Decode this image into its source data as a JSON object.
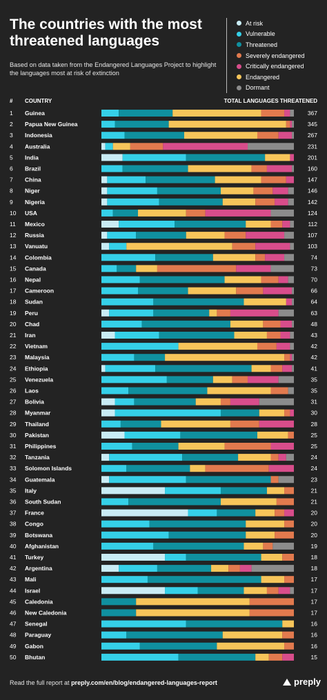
{
  "title": "The countries with the most threatened languages",
  "subtitle": "Based on data taken from the Endangered Languages Project to highlight the languages most at risk of extinction",
  "footer": {
    "prefix": "Read the full report at ",
    "link": "preply.com/en/blog/endangered-languages-report"
  },
  "brand": "preply",
  "chart_data": {
    "type": "bar",
    "orientation": "horizontal",
    "stacked": true,
    "normalized": true,
    "header_rank": "#",
    "header_country": "COUNTRY",
    "header_total": "TOTAL LANGUAGES THREATENED",
    "legend": [
      {
        "name": "At risk",
        "color": "#c9ecf5"
      },
      {
        "name": "Vulnerable",
        "color": "#35d0e8"
      },
      {
        "name": "Threatened",
        "color": "#10909f"
      },
      {
        "name": "Severely endangered",
        "color": "#e27a4e"
      },
      {
        "name": "Critically endangered",
        "color": "#d84d8b"
      },
      {
        "name": "Endangered",
        "color": "#f7c55a"
      },
      {
        "name": "Dormant",
        "color": "#8c8c8c"
      }
    ],
    "segment_order": [
      "At risk",
      "Vulnerable",
      "Threatened",
      "Endangered",
      "Severely endangered",
      "Critically endangered",
      "Dormant"
    ],
    "rows": [
      {
        "rank": 1,
        "country": "Guinea",
        "total": 367,
        "shares": [
          0,
          0.09,
          0.28,
          0.46,
          0.12,
          0.03,
          0.02
        ]
      },
      {
        "rank": 2,
        "country": "Papua New Guinea",
        "total": 345,
        "shares": [
          0,
          0.07,
          0.28,
          0.61,
          0.02,
          0.01,
          0.01
        ]
      },
      {
        "rank": 3,
        "country": "Indonesia",
        "total": 267,
        "shares": [
          0,
          0.12,
          0.31,
          0.38,
          0.11,
          0.07,
          0.01
        ]
      },
      {
        "rank": 4,
        "country": "Australia",
        "total": 231,
        "shares": [
          0.02,
          0.04,
          0,
          0.09,
          0.17,
          0.44,
          0.24
        ]
      },
      {
        "rank": 5,
        "country": "India",
        "total": 201,
        "shares": [
          0.11,
          0.33,
          0.41,
          0.13,
          0,
          0.02,
          0
        ]
      },
      {
        "rank": 6,
        "country": "Brazil",
        "total": 160,
        "shares": [
          0,
          0.11,
          0.34,
          0.33,
          0.08,
          0.13,
          0.01
        ]
      },
      {
        "rank": 7,
        "country": "China",
        "total": 147,
        "shares": [
          0.03,
          0.2,
          0.36,
          0.24,
          0.13,
          0.04,
          0
        ]
      },
      {
        "rank": 8,
        "country": "Niger",
        "total": 146,
        "shares": [
          0.03,
          0.26,
          0.33,
          0.17,
          0.1,
          0.08,
          0.03
        ]
      },
      {
        "rank": 9,
        "country": "Nigeria",
        "total": 142,
        "shares": [
          0.03,
          0.27,
          0.33,
          0.17,
          0.1,
          0.07,
          0.03
        ]
      },
      {
        "rank": 10,
        "country": "USA",
        "total": 124,
        "shares": [
          0,
          0.06,
          0.13,
          0.25,
          0.1,
          0.34,
          0.12
        ]
      },
      {
        "rank": 11,
        "country": "Mexico",
        "total": 112,
        "shares": [
          0.09,
          0.29,
          0.37,
          0.13,
          0.06,
          0.04,
          0.02
        ]
      },
      {
        "rank": 12,
        "country": "Russia",
        "total": 107,
        "shares": [
          0.03,
          0.15,
          0.26,
          0.2,
          0.11,
          0.2,
          0.05
        ]
      },
      {
        "rank": 13,
        "country": "Vanuatu",
        "total": 103,
        "shares": [
          0.04,
          0.09,
          0,
          0.55,
          0.12,
          0.18,
          0.02
        ]
      },
      {
        "rank": 14,
        "country": "Colombia",
        "total": 74,
        "shares": [
          0,
          0.28,
          0.3,
          0.22,
          0.05,
          0.1,
          0.05
        ]
      },
      {
        "rank": 15,
        "country": "Canada",
        "total": 73,
        "shares": [
          0,
          0.08,
          0.1,
          0.11,
          0.41,
          0.18,
          0.12
        ]
      },
      {
        "rank": 16,
        "country": "Nepal",
        "total": 70,
        "shares": [
          0,
          0.2,
          0.44,
          0.19,
          0.09,
          0.05,
          0.03
        ]
      },
      {
        "rank": 17,
        "country": "Cameroon",
        "total": 66,
        "shares": [
          0,
          0.19,
          0.26,
          0.25,
          0.14,
          0.15,
          0.01
        ]
      },
      {
        "rank": 18,
        "country": "Sudan",
        "total": 64,
        "shares": [
          0,
          0.27,
          0.47,
          0.22,
          0,
          0.03,
          0.01
        ]
      },
      {
        "rank": 19,
        "country": "Peru",
        "total": 63,
        "shares": [
          0.04,
          0.23,
          0.29,
          0.04,
          0.07,
          0.25,
          0.08
        ]
      },
      {
        "rank": 20,
        "country": "Chad",
        "total": 48,
        "shares": [
          0,
          0.21,
          0.46,
          0.17,
          0.09,
          0.06,
          0.01
        ]
      },
      {
        "rank": 21,
        "country": "Iran",
        "total": 43,
        "shares": [
          0.07,
          0.23,
          0.39,
          0.17,
          0.07,
          0.05,
          0.02
        ]
      },
      {
        "rank": 22,
        "country": "Vietnam",
        "total": 42,
        "shares": [
          0,
          0.4,
          0,
          0.41,
          0.1,
          0.07,
          0.02
        ]
      },
      {
        "rank": 23,
        "country": "Malaysia",
        "total": 42,
        "shares": [
          0,
          0.17,
          0.16,
          0.62,
          0.03,
          0.01,
          0.01
        ]
      },
      {
        "rank": 24,
        "country": "Ethiopia",
        "total": 41,
        "shares": [
          0.02,
          0.26,
          0.5,
          0.1,
          0.06,
          0.05,
          0.01
        ]
      },
      {
        "rank": 25,
        "country": "Venezuela",
        "total": 35,
        "shares": [
          0,
          0.34,
          0.24,
          0.1,
          0.08,
          0.16,
          0.08
        ]
      },
      {
        "rank": 26,
        "country": "Laos",
        "total": 35,
        "shares": [
          0,
          0.14,
          0.41,
          0.33,
          0.09,
          0,
          0.03
        ]
      },
      {
        "rank": 27,
        "country": "Bolivia",
        "total": 31,
        "shares": [
          0.07,
          0.1,
          0.32,
          0.13,
          0.05,
          0.15,
          0.18
        ]
      },
      {
        "rank": 28,
        "country": "Myanmar",
        "total": 30,
        "shares": [
          0.07,
          0.55,
          0.2,
          0.13,
          0.03,
          0.02,
          0
        ]
      },
      {
        "rank": 29,
        "country": "Thailand",
        "total": 28,
        "shares": [
          0,
          0.1,
          0.21,
          0.36,
          0.15,
          0.18,
          0
        ]
      },
      {
        "rank": 30,
        "country": "Pakistan",
        "total": 25,
        "shares": [
          0.12,
          0.29,
          0.4,
          0.16,
          0.03,
          0,
          0
        ]
      },
      {
        "rank": 31,
        "country": "Philippines",
        "total": 25,
        "shares": [
          0,
          0.16,
          0.24,
          0.24,
          0.24,
          0.12,
          0
        ]
      },
      {
        "rank": 32,
        "country": "Tanzania",
        "total": 24,
        "shares": [
          0.04,
          0.38,
          0.29,
          0.17,
          0.04,
          0.04,
          0.04
        ]
      },
      {
        "rank": 33,
        "country": "Solomon Islands",
        "total": 24,
        "shares": [
          0,
          0.13,
          0.33,
          0.08,
          0.33,
          0.13,
          0
        ]
      },
      {
        "rank": 34,
        "country": "Guatemala",
        "total": 23,
        "shares": [
          0.04,
          0.4,
          0.44,
          0,
          0.04,
          0,
          0.08
        ]
      },
      {
        "rank": 35,
        "country": "Italy",
        "total": 21,
        "shares": [
          0.33,
          0.29,
          0.24,
          0.09,
          0.05,
          0,
          0
        ]
      },
      {
        "rank": 36,
        "country": "South Sudan",
        "total": 21,
        "shares": [
          0,
          0.14,
          0.48,
          0.29,
          0.09,
          0,
          0
        ]
      },
      {
        "rank": 37,
        "country": "France",
        "total": 20,
        "shares": [
          0.45,
          0.15,
          0.2,
          0.1,
          0.05,
          0.05,
          0
        ]
      },
      {
        "rank": 38,
        "country": "Congo",
        "total": 20,
        "shares": [
          0,
          0.25,
          0.5,
          0.2,
          0.05,
          0,
          0
        ]
      },
      {
        "rank": 39,
        "country": "Botswana",
        "total": 20,
        "shares": [
          0,
          0.35,
          0.4,
          0.15,
          0.1,
          0,
          0
        ]
      },
      {
        "rank": 40,
        "country": "Afghanistan",
        "total": 19,
        "shares": [
          0,
          0.27,
          0.47,
          0.1,
          0.05,
          0,
          0.11
        ]
      },
      {
        "rank": 41,
        "country": "Turkey",
        "total": 18,
        "shares": [
          0.33,
          0.11,
          0.39,
          0.11,
          0.06,
          0,
          0
        ]
      },
      {
        "rank": 42,
        "country": "Argentina",
        "total": 18,
        "shares": [
          0.09,
          0.2,
          0.28,
          0.09,
          0.06,
          0.06,
          0.22
        ]
      },
      {
        "rank": 43,
        "country": "Mali",
        "total": 17,
        "shares": [
          0,
          0.24,
          0.59,
          0.12,
          0.05,
          0,
          0
        ]
      },
      {
        "rank": 44,
        "country": "Israel",
        "total": 17,
        "shares": [
          0.33,
          0.17,
          0.24,
          0.12,
          0.06,
          0.06,
          0.02
        ]
      },
      {
        "rank": 45,
        "country": "Caledonia",
        "total": 17,
        "shares": [
          0,
          0,
          0.18,
          0.59,
          0.23,
          0,
          0
        ]
      },
      {
        "rank": 46,
        "country": "New Caledonia",
        "total": 17,
        "shares": [
          0,
          0,
          0.18,
          0.59,
          0.23,
          0,
          0
        ]
      },
      {
        "rank": 47,
        "country": "Senegal",
        "total": 16,
        "shares": [
          0,
          0.44,
          0.5,
          0.06,
          0,
          0,
          0
        ]
      },
      {
        "rank": 48,
        "country": "Paraguay",
        "total": 16,
        "shares": [
          0,
          0.13,
          0.5,
          0.31,
          0.06,
          0,
          0
        ]
      },
      {
        "rank": 49,
        "country": "Gabon",
        "total": 16,
        "shares": [
          0,
          0.2,
          0.4,
          0.35,
          0.05,
          0,
          0
        ]
      },
      {
        "rank": 50,
        "country": "Bhutan",
        "total": 15,
        "shares": [
          0,
          0.4,
          0.4,
          0.07,
          0.07,
          0.06,
          0
        ]
      }
    ]
  }
}
